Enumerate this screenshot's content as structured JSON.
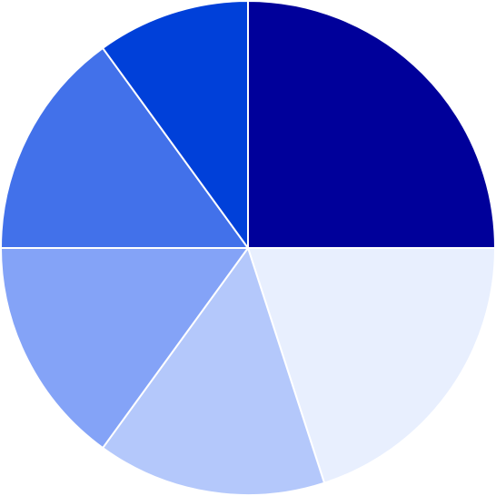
{
  "chart_data": {
    "type": "pie",
    "title": "",
    "start_angle_deg": 0,
    "direction": "clockwise-from-top",
    "slices": [
      {
        "value": 25,
        "color": "#00009a"
      },
      {
        "value": 20,
        "color": "#e8effe"
      },
      {
        "value": 15,
        "color": "#b4c8fb"
      },
      {
        "value": 15,
        "color": "#84a3f7"
      },
      {
        "value": 15,
        "color": "#4271ea"
      },
      {
        "value": 10,
        "color": "#0040d9"
      }
    ],
    "legend": "none",
    "grid": false
  }
}
